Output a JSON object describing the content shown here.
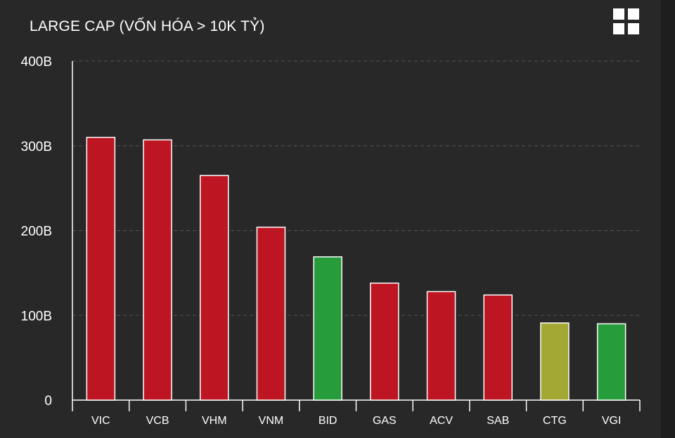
{
  "header": {
    "title": "LARGE CAP (VỐN HÓA > 10K TỶ)",
    "menu_icon": "grid-menu-icon"
  },
  "colors": {
    "background": "#282828",
    "axis": "#ffffff",
    "gridline": "#555555",
    "down": "#bd1622",
    "up": "#279c3a",
    "reference": "#a3a834",
    "bar_border": "#ffffff"
  },
  "chart_data": {
    "type": "bar",
    "title": "LARGE CAP (VỐN HÓA > 10K TỶ)",
    "xlabel": "",
    "ylabel": "",
    "ylim": [
      0,
      400
    ],
    "yticks": [
      0,
      100,
      200,
      300,
      400
    ],
    "ytick_labels": [
      "0",
      "100B",
      "200B",
      "300B",
      "400B"
    ],
    "grid": true,
    "categories": [
      "VIC",
      "VCB",
      "VHM",
      "VNM",
      "BID",
      "GAS",
      "ACV",
      "SAB",
      "CTG",
      "VGI"
    ],
    "values": [
      310,
      307,
      265,
      204,
      169,
      138,
      128,
      124,
      91,
      90
    ],
    "bar_colors": [
      "#bd1622",
      "#bd1622",
      "#bd1622",
      "#bd1622",
      "#279c3a",
      "#bd1622",
      "#bd1622",
      "#bd1622",
      "#a3a834",
      "#279c3a"
    ]
  }
}
